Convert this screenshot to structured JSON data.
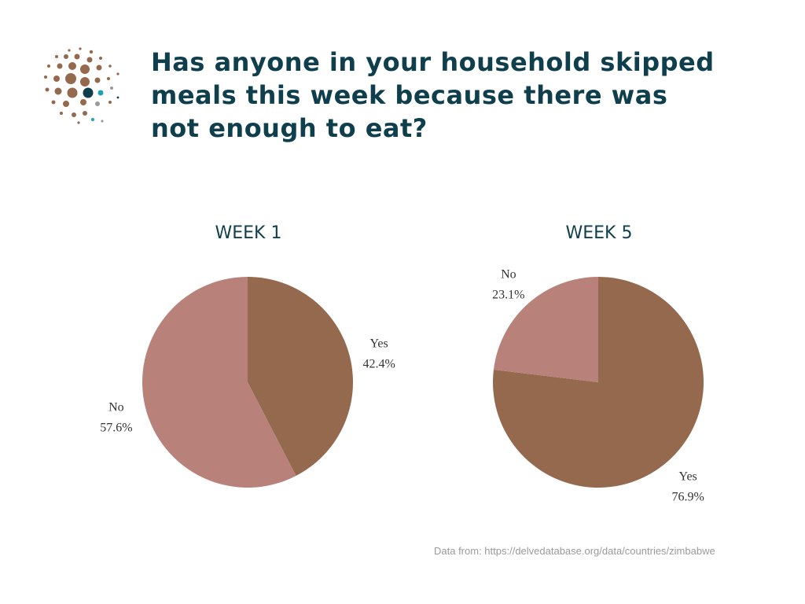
{
  "page": {
    "title": "Has anyone in your household skipped meals this week because there was not enough to eat?",
    "source": "Data from: https://delvedatabase.org/data/countries/zimbabwe"
  },
  "colors": {
    "title": "#0f3f4d",
    "yes": "#95694e",
    "no": "#b8827a",
    "logo_brown": "#95694e",
    "logo_teal": "#1aa3b0",
    "logo_dark": "#0f3f4d",
    "logo_gray": "#9a9a9a"
  },
  "icons": {
    "logo": "dot-cluster-logo"
  },
  "chart_data": [
    {
      "type": "pie",
      "title": "WEEK 1",
      "slices": [
        {
          "label": "Yes",
          "value": 42.4,
          "value_label": "42.4%",
          "color": "#95694e"
        },
        {
          "label": "No",
          "value": 57.6,
          "value_label": "57.6%",
          "color": "#b8827a"
        }
      ]
    },
    {
      "type": "pie",
      "title": "WEEK 5",
      "slices": [
        {
          "label": "Yes",
          "value": 76.9,
          "value_label": "76.9%",
          "color": "#95694e"
        },
        {
          "label": "No",
          "value": 23.1,
          "value_label": "23.1%",
          "color": "#b8827a"
        }
      ]
    }
  ]
}
